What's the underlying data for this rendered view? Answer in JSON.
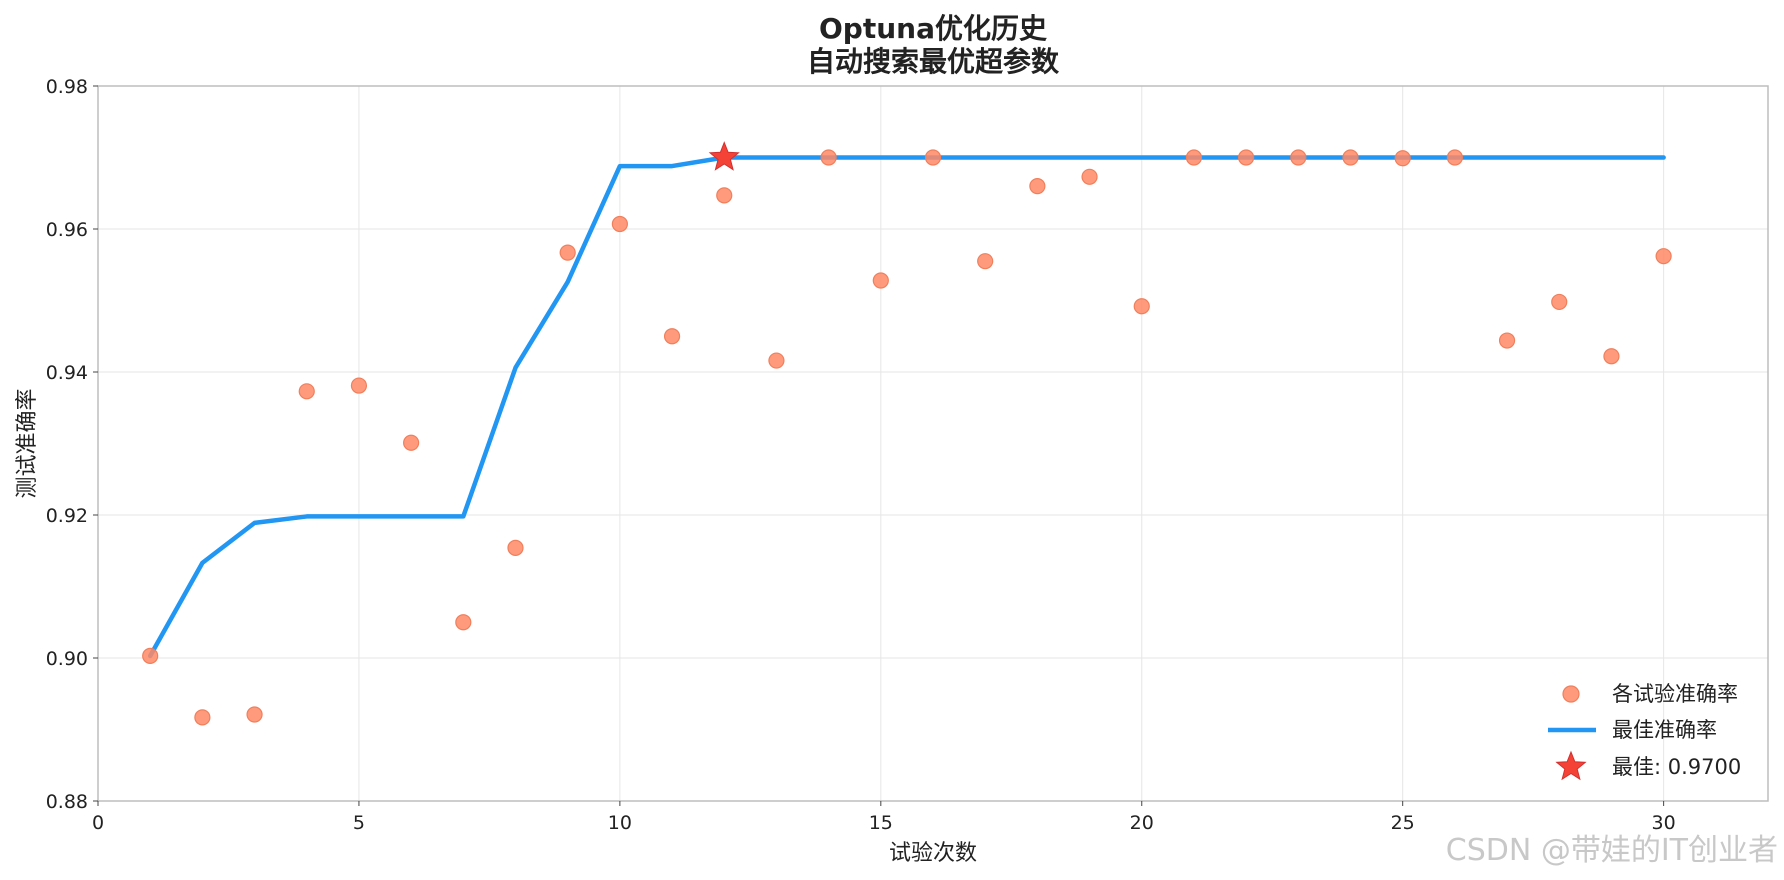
{
  "chart_data": {
    "type": "line",
    "title_lines": [
      "Optuna优化历史",
      "自动搜索最优超参数"
    ],
    "xlabel": "试验次数",
    "ylabel": "测试准确率",
    "xlim": [
      0,
      32
    ],
    "ylim": [
      0.88,
      0.98
    ],
    "x_ticks": [
      0,
      5,
      10,
      15,
      20,
      25,
      30
    ],
    "y_ticks": [
      0.88,
      0.9,
      0.92,
      0.94,
      0.96,
      0.98
    ],
    "y_tick_labels": [
      "0.88",
      "0.90",
      "0.92",
      "0.94",
      "0.96",
      "0.98"
    ],
    "grid": true,
    "legend_position": "lower-right",
    "series": [
      {
        "name": "各试验准确率",
        "kind": "scatter",
        "color": "#FF8A65",
        "x": [
          1,
          2,
          3,
          4,
          5,
          6,
          7,
          8,
          9,
          10,
          11,
          12,
          13,
          14,
          15,
          16,
          17,
          18,
          19,
          20,
          21,
          22,
          23,
          24,
          25,
          26,
          27,
          28,
          29,
          30
        ],
        "y": [
          0.9003,
          0.8917,
          0.8921,
          0.9373,
          0.9381,
          0.9301,
          0.905,
          0.9154,
          0.9567,
          0.9607,
          0.945,
          0.9647,
          0.9416,
          0.97,
          0.9528,
          0.97,
          0.9555,
          0.966,
          0.9673,
          0.9492,
          0.97,
          0.97,
          0.97,
          0.97,
          0.9699,
          0.97,
          0.9444,
          0.9498,
          0.9422,
          0.9562
        ]
      },
      {
        "name": "最佳准确率",
        "kind": "line",
        "color": "#2196F3",
        "x": [
          1,
          2,
          3,
          4,
          5,
          6,
          7,
          8,
          9,
          10,
          11,
          12,
          13,
          14,
          15,
          16,
          17,
          18,
          19,
          20,
          21,
          22,
          23,
          24,
          25,
          26,
          27,
          28,
          29,
          30
        ],
        "y": [
          0.9003,
          0.9133,
          0.9189,
          0.9198,
          0.9198,
          0.9198,
          0.9198,
          0.9406,
          0.9526,
          0.9688,
          0.9688,
          0.97,
          0.97,
          0.97,
          0.97,
          0.97,
          0.97,
          0.97,
          0.97,
          0.97,
          0.97,
          0.97,
          0.97,
          0.97,
          0.97,
          0.97,
          0.97,
          0.97,
          0.97,
          0.97
        ]
      },
      {
        "name": "最佳: 0.9700",
        "kind": "star",
        "color": "#F44336",
        "x": [
          12
        ],
        "y": [
          0.97
        ]
      }
    ]
  },
  "watermark": "CSDN @带娃的IT创业者"
}
